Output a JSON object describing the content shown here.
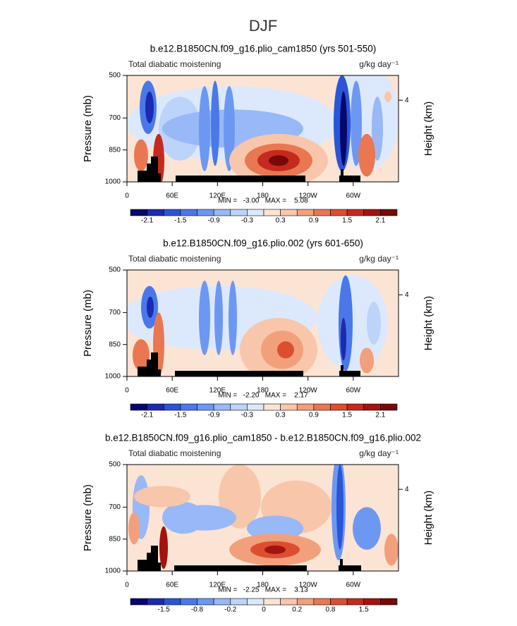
{
  "title": "DJF",
  "chart_data": [
    {
      "type": "contour",
      "title": "b.e12.B1850CN.f09_g16.plio_cam1850 (yrs 501-550)",
      "left_label": "Total diabatic moistening",
      "right_label": "g/kg day⁻¹",
      "ylabel": "Pressure (mb)",
      "y2label": "Height (km)",
      "xlim": [
        0,
        360
      ],
      "xticks": [
        0,
        {
          "value": 60,
          "label": "60E"
        },
        {
          "value": 120,
          "label": "120E"
        },
        180,
        {
          "value": 240,
          "label": "120W"
        },
        {
          "value": 300,
          "label": "60W"
        }
      ],
      "ylim": [
        1000,
        500
      ],
      "yticks": [
        500,
        700,
        850,
        1000
      ],
      "y2ticks": [
        4
      ],
      "stats": "MIN =   -3.00   MAX =    5.08",
      "colorbar": {
        "colors": [
          "#06086e",
          "#1a2bb0",
          "#2a55d8",
          "#4a78ea",
          "#6d98f2",
          "#98b8f7",
          "#bdd3fa",
          "#dce8fc",
          "#fce4d4",
          "#f8c6aa",
          "#f2a07c",
          "#e97752",
          "#dd4e31",
          "#c42a1d",
          "#a3130f",
          "#780909"
        ],
        "labels": [
          -2.1,
          -1.5,
          -0.9,
          -0.3,
          0.3,
          0.9,
          1.5,
          2.1
        ]
      }
    },
    {
      "type": "contour",
      "title": "b.e12.B1850CN.f09_g16.plio.002 (yrs 601-650)",
      "left_label": "Total diabatic moistening",
      "right_label": "g/kg day⁻¹",
      "ylabel": "Pressure (mb)",
      "y2label": "Height (km)",
      "xlim": [
        0,
        360
      ],
      "xticks": [
        0,
        {
          "value": 60,
          "label": "60E"
        },
        {
          "value": 120,
          "label": "120E"
        },
        180,
        {
          "value": 240,
          "label": "120W"
        },
        {
          "value": 300,
          "label": "60W"
        }
      ],
      "ylim": [
        1000,
        500
      ],
      "yticks": [
        500,
        700,
        850,
        1000
      ],
      "y2ticks": [
        4
      ],
      "stats": "MIN =   -2.20   MAX =    2.17",
      "colorbar": {
        "colors": [
          "#06086e",
          "#1a2bb0",
          "#2a55d8",
          "#4a78ea",
          "#6d98f2",
          "#98b8f7",
          "#bdd3fa",
          "#dce8fc",
          "#fce4d4",
          "#f8c6aa",
          "#f2a07c",
          "#e97752",
          "#dd4e31",
          "#c42a1d",
          "#a3130f",
          "#780909"
        ],
        "labels": [
          -2.1,
          -1.5,
          -0.9,
          -0.3,
          0.3,
          0.9,
          1.5,
          2.1
        ]
      }
    },
    {
      "type": "contour",
      "title": "b.e12.B1850CN.f09_g16.plio_cam1850 - b.e12.B1850CN.f09_g16.plio.002",
      "left_label": "Total diabatic moistening",
      "right_label": "g/kg day⁻¹",
      "ylabel": "Pressure (mb)",
      "y2label": "Height (km)",
      "xlim": [
        0,
        360
      ],
      "xticks": [
        0,
        {
          "value": 60,
          "label": "60E"
        },
        {
          "value": 120,
          "label": "120E"
        },
        180,
        {
          "value": 240,
          "label": "120W"
        },
        {
          "value": 300,
          "label": "60W"
        }
      ],
      "ylim": [
        1000,
        500
      ],
      "yticks": [
        500,
        700,
        850,
        1000
      ],
      "y2ticks": [
        4
      ],
      "stats": "MIN =   -2.25   MAX =    3.13",
      "colorbar": {
        "colors": [
          "#06086e",
          "#1a2bb0",
          "#2a55d8",
          "#4a78ea",
          "#6d98f2",
          "#98b8f7",
          "#bdd3fa",
          "#dce8fc",
          "#fce4d4",
          "#f8c6aa",
          "#f2a07c",
          "#e97752",
          "#dd4e31",
          "#c42a1d",
          "#a3130f",
          "#780909"
        ],
        "labels": [
          -1.5,
          -0.8,
          -0.2,
          0,
          0.2,
          0.8,
          1.5
        ]
      }
    }
  ]
}
